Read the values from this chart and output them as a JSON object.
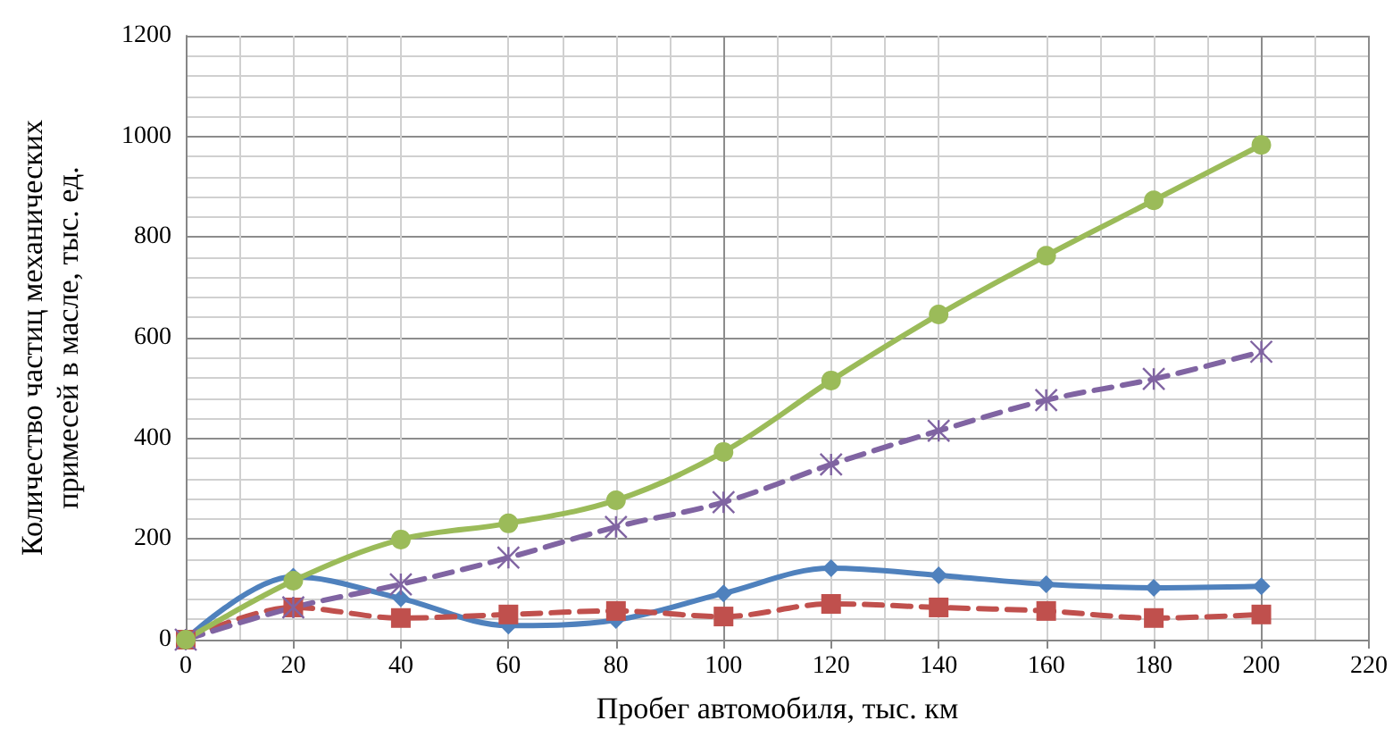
{
  "chart_data": {
    "type": "line",
    "xlabel": "Пробег автомобиля, тыс. км",
    "ylabel": "Количество частиц механических примесей в масле, тыс. ед.",
    "x": [
      0,
      20,
      40,
      60,
      80,
      100,
      120,
      140,
      160,
      180,
      200
    ],
    "xlim": [
      0,
      220
    ],
    "xticks": [
      0,
      20,
      40,
      60,
      80,
      100,
      120,
      140,
      160,
      180,
      200,
      220
    ],
    "ylim": [
      0,
      1200
    ],
    "yticks": [
      0,
      200,
      400,
      600,
      800,
      1000,
      1200
    ],
    "grid": true,
    "series": [
      {
        "color": "#4f81bd",
        "marker": "diamond",
        "line_style": "solid",
        "values": [
          0,
          125,
          82,
          28,
          39,
          92,
          142,
          128,
          110,
          103,
          106
        ]
      },
      {
        "color": "#c0504d",
        "marker": "square",
        "line_style": "dashed",
        "values": [
          0,
          64,
          43,
          50,
          57,
          46,
          71,
          64,
          57,
          43,
          50
        ]
      },
      {
        "color": "#8064a2",
        "marker": "cross",
        "line_style": "dashed",
        "values": [
          0,
          64,
          110,
          163,
          224,
          273,
          348,
          415,
          476,
          518,
          572
        ]
      },
      {
        "color": "#9bbb59",
        "marker": "circle",
        "line_style": "solid",
        "values": [
          0,
          117,
          199,
          231,
          277,
          373,
          515,
          646,
          763,
          873,
          983
        ]
      }
    ]
  }
}
